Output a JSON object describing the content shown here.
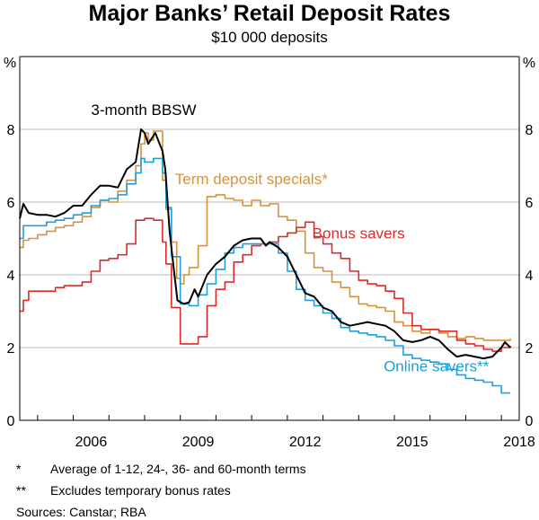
{
  "header": {
    "title": "Major Banks’ Retail Deposit Rates",
    "subtitle": "$10 000 deposits"
  },
  "footnotes": [
    {
      "mark": "*",
      "text": "Average of 1-12, 24-, 36- and 60-month terms"
    },
    {
      "mark": "**",
      "text": "Excludes temporary bonus rates"
    }
  ],
  "sources": "Sources: Canstar; RBA",
  "chart_data": {
    "type": "line",
    "title": "Major Banks’ Retail Deposit Rates",
    "subtitle": "$10 000 deposits",
    "ylabel_left": "%",
    "ylabel_right": "%",
    "xlim": [
      2004.5,
      2018.5
    ],
    "ylim": [
      0,
      10
    ],
    "y_ticks": [
      0,
      2,
      4,
      6,
      8
    ],
    "x_ticks": [
      2006,
      2009,
      2012,
      2015,
      2018
    ],
    "grid": true,
    "colors": {
      "bbsw": "#000000",
      "term": "#d4933a",
      "bonus": "#dc2a2a",
      "online": "#1ea0dc",
      "grid": "#b8b8b8"
    },
    "series": [
      {
        "name": "3-month BBSW",
        "key": "bbsw",
        "step": false,
        "x": [
          2004.5,
          2004.6,
          2004.75,
          2005.0,
          2005.25,
          2005.5,
          2005.75,
          2006.0,
          2006.25,
          2006.5,
          2006.75,
          2007.0,
          2007.25,
          2007.5,
          2007.75,
          2007.9,
          2008.0,
          2008.1,
          2008.2,
          2008.3,
          2008.42,
          2008.5,
          2008.58,
          2008.7,
          2008.8,
          2008.92,
          2009.0,
          2009.1,
          2009.25,
          2009.4,
          2009.5,
          2009.75,
          2010.0,
          2010.25,
          2010.5,
          2010.75,
          2011.0,
          2011.25,
          2011.4,
          2011.5,
          2011.75,
          2012.0,
          2012.25,
          2012.5,
          2012.75,
          2013.0,
          2013.25,
          2013.5,
          2013.75,
          2014.0,
          2014.25,
          2014.5,
          2014.75,
          2015.0,
          2015.25,
          2015.5,
          2015.75,
          2016.0,
          2016.25,
          2016.5,
          2016.75,
          2017.0,
          2017.25,
          2017.5,
          2017.75,
          2018.0,
          2018.1,
          2018.2,
          2018.25
        ],
        "values": [
          5.55,
          5.95,
          5.7,
          5.65,
          5.65,
          5.6,
          5.7,
          5.9,
          5.9,
          6.2,
          6.45,
          6.45,
          6.4,
          6.9,
          7.1,
          8.0,
          7.9,
          7.6,
          7.75,
          7.9,
          7.6,
          7.4,
          6.9,
          5.2,
          4.3,
          3.3,
          3.25,
          3.2,
          3.25,
          3.6,
          3.4,
          4.0,
          4.3,
          4.5,
          4.8,
          4.95,
          5.0,
          5.0,
          4.8,
          4.9,
          4.75,
          4.5,
          4.0,
          3.5,
          3.4,
          3.1,
          3.0,
          2.7,
          2.6,
          2.65,
          2.7,
          2.65,
          2.6,
          2.45,
          2.2,
          2.15,
          2.2,
          2.3,
          2.2,
          1.95,
          1.75,
          1.8,
          1.75,
          1.7,
          1.75,
          2.0,
          2.15,
          2.05,
          2.0
        ]
      },
      {
        "name": "Term deposit specials*",
        "key": "term",
        "step": true,
        "x": [
          2004.5,
          2004.6,
          2004.75,
          2005.0,
          2005.25,
          2005.5,
          2005.75,
          2006.0,
          2006.25,
          2006.5,
          2006.75,
          2007.0,
          2007.25,
          2007.5,
          2007.75,
          2007.9,
          2008.0,
          2008.1,
          2008.25,
          2008.5,
          2008.6,
          2008.75,
          2008.9,
          2009.0,
          2009.1,
          2009.25,
          2009.5,
          2009.75,
          2010.0,
          2010.25,
          2010.5,
          2010.75,
          2011.0,
          2011.25,
          2011.5,
          2011.75,
          2012.0,
          2012.25,
          2012.5,
          2012.75,
          2013.0,
          2013.25,
          2013.5,
          2013.75,
          2014.0,
          2014.25,
          2014.5,
          2014.75,
          2015.0,
          2015.25,
          2015.5,
          2015.75,
          2016.0,
          2016.25,
          2016.5,
          2016.75,
          2017.0,
          2017.25,
          2017.5,
          2017.75,
          2018.0,
          2018.25
        ],
        "values": [
          4.75,
          4.95,
          5.0,
          5.1,
          5.2,
          5.3,
          5.35,
          5.45,
          5.6,
          5.85,
          6.05,
          6.0,
          6.3,
          6.6,
          7.0,
          7.6,
          7.9,
          7.7,
          7.95,
          6.6,
          5.8,
          4.9,
          3.9,
          3.75,
          4.0,
          4.2,
          4.8,
          6.15,
          6.2,
          6.1,
          6.05,
          5.9,
          6.05,
          5.9,
          5.95,
          5.6,
          5.5,
          5.2,
          4.6,
          4.2,
          4.1,
          3.8,
          3.65,
          3.4,
          3.2,
          3.15,
          3.1,
          3.0,
          2.7,
          2.6,
          2.45,
          2.4,
          2.5,
          2.4,
          2.3,
          2.25,
          2.3,
          2.25,
          2.2,
          2.2,
          2.2,
          2.25
        ]
      },
      {
        "name": "Bonus savers",
        "key": "bonus",
        "step": true,
        "x": [
          2004.5,
          2004.6,
          2004.75,
          2005.0,
          2005.25,
          2005.5,
          2005.75,
          2006.0,
          2006.25,
          2006.5,
          2006.75,
          2007.0,
          2007.25,
          2007.5,
          2007.75,
          2008.0,
          2008.25,
          2008.5,
          2008.6,
          2008.75,
          2009.0,
          2009.25,
          2009.5,
          2009.75,
          2010.0,
          2010.25,
          2010.5,
          2010.75,
          2011.0,
          2011.25,
          2011.5,
          2011.75,
          2012.0,
          2012.25,
          2012.5,
          2012.75,
          2013.0,
          2013.25,
          2013.5,
          2013.75,
          2014.0,
          2014.25,
          2014.5,
          2014.75,
          2015.0,
          2015.25,
          2015.5,
          2015.75,
          2016.0,
          2016.25,
          2016.5,
          2016.75,
          2017.0,
          2017.25,
          2017.5,
          2017.75,
          2018.0,
          2018.25
        ],
        "values": [
          3.0,
          3.3,
          3.55,
          3.55,
          3.55,
          3.65,
          3.7,
          3.7,
          3.8,
          4.1,
          4.4,
          4.45,
          4.55,
          4.85,
          5.5,
          5.55,
          5.5,
          4.9,
          4.3,
          3.1,
          2.1,
          2.1,
          2.3,
          3.15,
          3.6,
          3.8,
          4.35,
          4.55,
          4.8,
          4.85,
          4.9,
          5.05,
          5.15,
          5.3,
          5.45,
          5.05,
          4.85,
          4.6,
          4.45,
          4.1,
          3.85,
          3.75,
          3.7,
          3.55,
          3.35,
          2.95,
          2.6,
          2.5,
          2.5,
          2.45,
          2.45,
          2.2,
          2.1,
          2.05,
          1.95,
          1.9,
          2.0,
          2.05
        ]
      },
      {
        "name": "Online savers**",
        "key": "online",
        "step": true,
        "x": [
          2004.5,
          2004.6,
          2004.75,
          2005.0,
          2005.25,
          2005.5,
          2005.75,
          2006.0,
          2006.25,
          2006.5,
          2006.75,
          2007.0,
          2007.25,
          2007.5,
          2007.75,
          2007.9,
          2008.0,
          2008.25,
          2008.5,
          2008.6,
          2008.75,
          2009.0,
          2009.25,
          2009.5,
          2009.75,
          2010.0,
          2010.25,
          2010.5,
          2010.75,
          2011.0,
          2011.25,
          2011.5,
          2011.75,
          2012.0,
          2012.25,
          2012.5,
          2012.75,
          2013.0,
          2013.25,
          2013.5,
          2013.75,
          2014.0,
          2014.25,
          2014.5,
          2014.75,
          2015.0,
          2015.25,
          2015.5,
          2015.75,
          2016.0,
          2016.25,
          2016.5,
          2016.75,
          2017.0,
          2017.25,
          2017.5,
          2017.75,
          2018.0,
          2018.25
        ],
        "values": [
          5.0,
          5.35,
          5.35,
          5.35,
          5.45,
          5.5,
          5.55,
          5.65,
          5.7,
          5.9,
          6.05,
          6.1,
          6.2,
          6.5,
          6.8,
          7.2,
          7.1,
          7.2,
          6.8,
          5.85,
          4.5,
          3.2,
          3.15,
          3.45,
          3.75,
          4.15,
          4.6,
          4.75,
          4.85,
          4.85,
          4.85,
          4.85,
          4.6,
          4.1,
          3.6,
          3.3,
          3.15,
          2.95,
          2.8,
          2.55,
          2.45,
          2.4,
          2.35,
          2.3,
          2.2,
          2.05,
          1.8,
          1.7,
          1.65,
          1.6,
          1.55,
          1.4,
          1.25,
          1.15,
          1.1,
          1.05,
          0.95,
          0.75,
          0.75
        ]
      }
    ],
    "annotations": [
      {
        "key": "bbsw",
        "text": "3-month BBSW",
        "x": 2006.5,
        "y": 8.4
      },
      {
        "key": "term",
        "text": "Term deposit specials*",
        "x": 2008.85,
        "y": 6.5
      },
      {
        "key": "bonus",
        "text": "Bonus savers",
        "x": 2012.7,
        "y": 5.0
      },
      {
        "key": "online",
        "text": "Online savers**",
        "x": 2014.7,
        "y": 1.35
      }
    ]
  }
}
